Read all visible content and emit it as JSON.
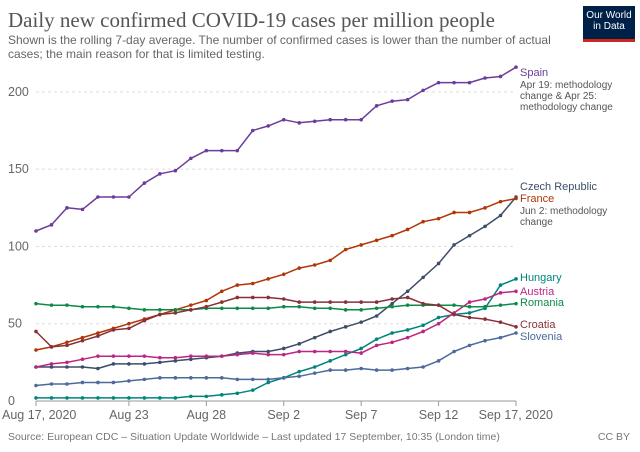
{
  "header": {
    "title": "Daily new confirmed COVID-19 cases per million people",
    "subtitle": "Shown is the rolling 7-day average. The number of confirmed cases is lower than the number of actual cases; the main reason for that is limited testing."
  },
  "logo": {
    "line1": "Our World",
    "line2": "in Data"
  },
  "footer": {
    "source": "Source: European CDC – Situation Update Worldwide – Last updated 17 September, 10:35 (London time)",
    "license": "CC BY"
  },
  "chart_data": {
    "type": "line",
    "title": "Daily new confirmed COVID-19 cases per million people",
    "xlabel": "",
    "ylabel": "",
    "ylim": [
      0,
      220
    ],
    "yticks": [
      0,
      50,
      100,
      150,
      200
    ],
    "grid": "horizontal",
    "x_range": [
      0,
      31
    ],
    "xticks": [
      {
        "pos": 0,
        "label": "Aug 17, 2020"
      },
      {
        "pos": 6,
        "label": "Aug 23"
      },
      {
        "pos": 11,
        "label": "Aug 28"
      },
      {
        "pos": 16,
        "label": "Sep 2"
      },
      {
        "pos": 21,
        "label": "Sep 7"
      },
      {
        "pos": 26,
        "label": "Sep 12"
      },
      {
        "pos": 31,
        "label": "Sep 17, 2020"
      }
    ],
    "series": [
      {
        "name": "Spain",
        "color": "#6a3d9a",
        "notes": [
          "Apr 19: methodology",
          "change & Apr 25:",
          "methodology change"
        ],
        "values": [
          110,
          114,
          125,
          124,
          132,
          132,
          132,
          141,
          147,
          149,
          157,
          162,
          162,
          162,
          175,
          178,
          182,
          180,
          181,
          182,
          182,
          182,
          191,
          194,
          195,
          201,
          206,
          206,
          206,
          209,
          210,
          216
        ]
      },
      {
        "name": "Czech Republic",
        "color": "#3c4e66",
        "notes": [],
        "values": [
          22,
          22,
          22,
          22,
          21,
          24,
          24,
          24,
          25,
          26,
          27,
          28,
          29,
          31,
          32,
          32,
          34,
          37,
          41,
          45,
          48,
          51,
          55,
          63,
          71,
          80,
          89,
          101,
          107,
          113,
          120,
          132
        ]
      },
      {
        "name": "France",
        "color": "#b13507",
        "notes": [
          "Jun 2: methodology",
          "change"
        ],
        "values": [
          33,
          35,
          38,
          41,
          44,
          47,
          50,
          53,
          56,
          59,
          62,
          65,
          71,
          75,
          76,
          79,
          82,
          86,
          88,
          91,
          98,
          101,
          104,
          107,
          111,
          116,
          118,
          122,
          122,
          125,
          129,
          131
        ]
      },
      {
        "name": "Hungary",
        "color": "#00847e",
        "notes": [],
        "values": [
          2,
          2,
          2,
          2,
          2,
          2,
          2,
          2,
          2,
          2,
          3,
          3,
          4,
          5,
          7,
          12,
          15,
          19,
          22,
          26,
          30,
          34,
          40,
          44,
          46,
          49,
          54,
          56,
          57,
          60,
          75,
          79
        ]
      },
      {
        "name": "Austria",
        "color": "#bc2683",
        "notes": [],
        "values": [
          22,
          24,
          25,
          27,
          29,
          29,
          29,
          29,
          28,
          28,
          29,
          29,
          29,
          30,
          31,
          30,
          30,
          32,
          32,
          32,
          32,
          31,
          36,
          38,
          41,
          45,
          50,
          57,
          64,
          66,
          70,
          71
        ]
      },
      {
        "name": "Romania",
        "color": "#0e8a48",
        "notes": [],
        "values": [
          63,
          62,
          62,
          61,
          61,
          61,
          60,
          59,
          59,
          59,
          59,
          60,
          60,
          60,
          60,
          60,
          61,
          61,
          60,
          60,
          59,
          59,
          60,
          61,
          62,
          62,
          62,
          62,
          61,
          61,
          62,
          63
        ]
      },
      {
        "name": "Croatia",
        "color": "#883039",
        "notes": [],
        "values": [
          45,
          35,
          36,
          39,
          42,
          46,
          47,
          52,
          56,
          57,
          59,
          61,
          64,
          67,
          67,
          67,
          66,
          64,
          64,
          64,
          64,
          64,
          64,
          66,
          67,
          63,
          62,
          56,
          54,
          53,
          51,
          48
        ]
      },
      {
        "name": "Slovenia",
        "color": "#4c6a9c",
        "notes": [],
        "values": [
          10,
          11,
          11,
          12,
          12,
          12,
          13,
          14,
          15,
          15,
          15,
          15,
          15,
          14,
          14,
          14,
          15,
          16,
          18,
          20,
          20,
          21,
          20,
          20,
          21,
          22,
          26,
          32,
          36,
          39,
          41,
          44
        ]
      }
    ]
  }
}
